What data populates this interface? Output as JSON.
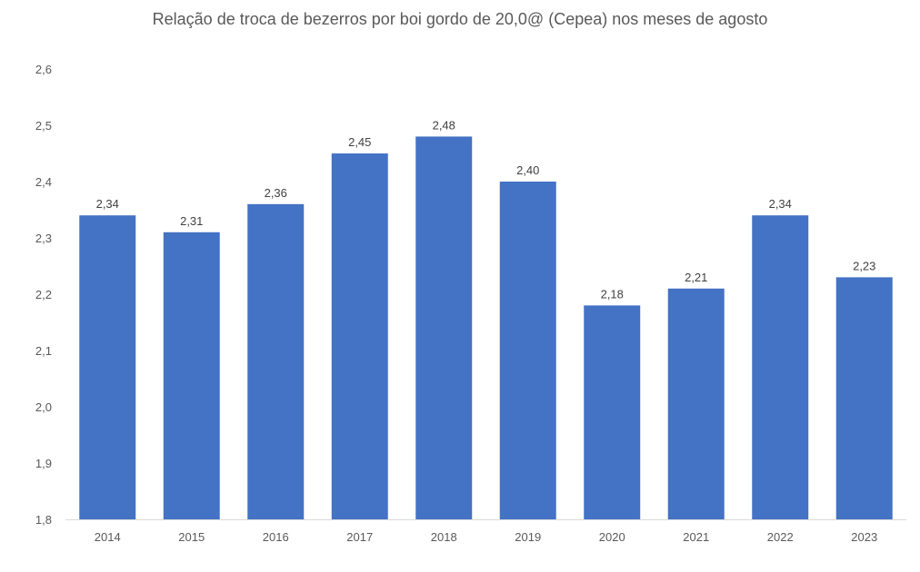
{
  "chart_data": {
    "type": "bar",
    "title": "Relação de troca de bezerros por boi gordo de 20,0@ (Cepea) nos meses de agosto",
    "xlabel": "",
    "ylabel": "",
    "categories": [
      "2014",
      "2015",
      "2016",
      "2017",
      "2018",
      "2019",
      "2020",
      "2021",
      "2022",
      "2023"
    ],
    "values": [
      2.34,
      2.31,
      2.36,
      2.45,
      2.48,
      2.4,
      2.18,
      2.21,
      2.34,
      2.23
    ],
    "data_labels": [
      "2,34",
      "2,31",
      "2,36",
      "2,45",
      "2,48",
      "2,40",
      "2,18",
      "2,21",
      "2,34",
      "2,23"
    ],
    "ylim": [
      1.8,
      2.6
    ],
    "yticks": [
      1.8,
      1.9,
      2.0,
      2.1,
      2.2,
      2.3,
      2.4,
      2.5,
      2.6
    ],
    "ytick_labels": [
      "1,8",
      "1,9",
      "2,0",
      "2,1",
      "2,2",
      "2,3",
      "2,4",
      "2,5",
      "2,6"
    ],
    "grid": false,
    "legend": "none",
    "bar_color": "#4472C4"
  }
}
